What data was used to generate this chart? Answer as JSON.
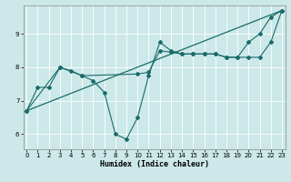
{
  "xlabel": "Humidex (Indice chaleur)",
  "bg_color": "#cce8e8",
  "line_color": "#1a6b6b",
  "grid_color": "#ffffff",
  "xlim": [
    -0.3,
    23.3
  ],
  "ylim": [
    5.55,
    9.85
  ],
  "yticks": [
    6,
    7,
    8,
    9
  ],
  "xticks": [
    0,
    1,
    2,
    3,
    4,
    5,
    6,
    7,
    8,
    9,
    10,
    11,
    12,
    13,
    14,
    15,
    16,
    17,
    18,
    19,
    20,
    21,
    22,
    23
  ],
  "line1_x": [
    0,
    1,
    2,
    3,
    4,
    5,
    6,
    7,
    8,
    9,
    10,
    11,
    12,
    13,
    14,
    15,
    16,
    17,
    18,
    19,
    20,
    21,
    22,
    23
  ],
  "line1_y": [
    6.7,
    7.4,
    7.4,
    8.0,
    7.9,
    7.75,
    7.6,
    7.25,
    6.0,
    5.85,
    6.5,
    7.75,
    8.75,
    8.5,
    8.4,
    8.4,
    8.4,
    8.4,
    8.3,
    8.3,
    8.75,
    9.0,
    9.5,
    9.7
  ],
  "line2_x": [
    0,
    3,
    5,
    10,
    11,
    12,
    13,
    14,
    15,
    16,
    17,
    18,
    19,
    20,
    21,
    22,
    23
  ],
  "line2_y": [
    6.7,
    8.0,
    7.75,
    7.8,
    7.85,
    8.5,
    8.45,
    8.4,
    8.4,
    8.4,
    8.4,
    8.3,
    8.3,
    8.3,
    8.3,
    8.75,
    9.7
  ],
  "line3_x": [
    0,
    23
  ],
  "line3_y": [
    6.7,
    9.7
  ]
}
